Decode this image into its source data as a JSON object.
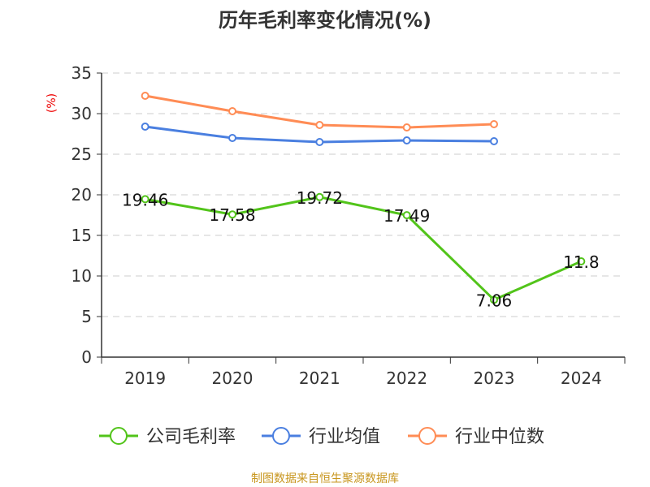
{
  "chart_data": {
    "type": "line",
    "title": "历年毛利率变化情况(%)",
    "ylabel": "(%)",
    "xlabel": "",
    "ylim": [
      0,
      35
    ],
    "yticks": [
      "0",
      "5",
      "10",
      "15",
      "20",
      "25",
      "30",
      "35"
    ],
    "categories": [
      "2019",
      "2020",
      "2021",
      "2022",
      "2023",
      "2024"
    ],
    "grid": true,
    "legend_position": "bottom",
    "series": [
      {
        "name": "公司毛利率",
        "color": "#52c41a",
        "values": [
          19.46,
          17.58,
          19.72,
          17.49,
          7.06,
          11.8
        ],
        "labels": [
          "19.46",
          "17.58",
          "19.72",
          "17.49",
          "7.06",
          "11.8"
        ]
      },
      {
        "name": "行业均值",
        "color": "#4a7fe0",
        "values": [
          28.4,
          27.0,
          26.5,
          26.7,
          26.6,
          null
        ]
      },
      {
        "name": "行业中位数",
        "color": "#ff8c55",
        "values": [
          32.2,
          30.3,
          28.6,
          28.3,
          28.7,
          null
        ]
      }
    ],
    "source": "制图数据来自恒生聚源数据库"
  }
}
